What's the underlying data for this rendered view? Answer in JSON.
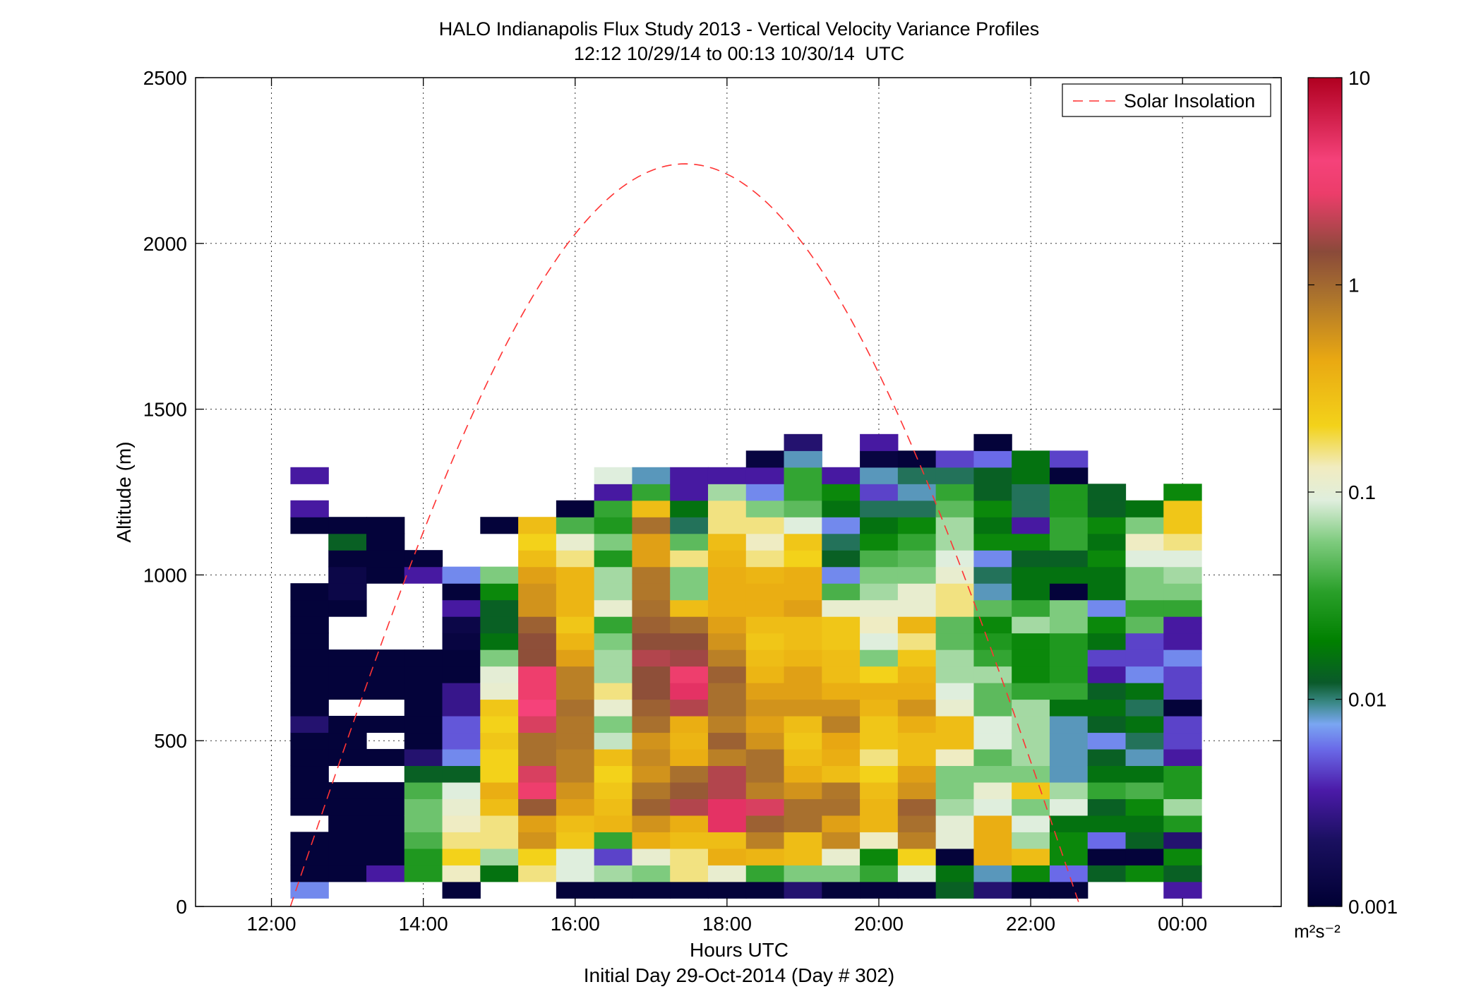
{
  "chart_data": {
    "type": "heatmap",
    "title": "HALO Indianapolis Flux Study 2013 - Vertical Velocity Variance Profiles",
    "subtitle": "12:12 10/29/14 to 00:13 10/30/14  UTC",
    "xlabel": "Hours UTC",
    "xlabel2": "Initial Day 29-Oct-2014 (Day # 302)",
    "ylabel": "Altitude (m)",
    "x_start_hour": 11.0,
    "x_end_hour": 25.3,
    "xlim_labels": [
      "12:00",
      "14:00",
      "16:00",
      "18:00",
      "20:00",
      "22:00",
      "00:00"
    ],
    "xticks_hour": [
      12,
      14,
      16,
      18,
      20,
      22,
      24
    ],
    "ylim": [
      0,
      2500
    ],
    "yticks": [
      0,
      500,
      1000,
      1500,
      2000,
      2500
    ],
    "grid": true,
    "colorbar": {
      "scale": "log",
      "min": 0.001,
      "max": 10,
      "tick_labels": [
        "0.001",
        "0.01",
        "0.1",
        "1",
        "10"
      ],
      "unit": "m2s-2",
      "unit_display": "m²s⁻²"
    },
    "legend": {
      "position": "top-right",
      "entries": [
        {
          "label": "Solar Insolation",
          "color": "#ff3333",
          "style": "dashed"
        }
      ]
    },
    "solar_insolation": {
      "start_hour": 12.25,
      "peak_hour": 17.45,
      "end_hour": 22.65,
      "peak_altitude": 2240
    },
    "cell_height_m": 50,
    "row_altitudes_bottom_m": [
      50,
      100,
      150,
      200,
      250,
      300,
      350,
      400,
      450,
      500,
      550,
      600,
      650,
      700,
      750,
      800,
      850,
      900,
      950,
      1000,
      1050,
      1100,
      1150,
      1200,
      1250,
      1300,
      1350,
      1400
    ],
    "columns": [
      {
        "hour": 12.5,
        "values": [
          0.006,
          0.0011,
          0.0011,
          0.0011,
          null,
          0.0011,
          0.0011,
          0.0011,
          0.0011,
          0.0011,
          0.002,
          0.0011,
          0.0011,
          0.0011,
          0.0011,
          0.0011,
          0.0011,
          0.0011,
          0.0011,
          null,
          null,
          null,
          0.0011,
          0.003,
          null,
          0.003,
          null,
          null
        ]
      },
      {
        "hour": 13.0,
        "values": [
          null,
          0.0011,
          0.0011,
          0.0011,
          0.0011,
          0.0011,
          0.0011,
          null,
          0.0011,
          0.0011,
          0.0011,
          null,
          0.0011,
          0.0011,
          0.0011,
          null,
          null,
          0.0011,
          0.0013,
          0.0013,
          0.0011,
          0.012,
          0.0011,
          null,
          null,
          null,
          null,
          null
        ]
      },
      {
        "hour": 13.5,
        "values": [
          null,
          0.003,
          0.0011,
          0.0011,
          0.0011,
          0.0011,
          0.0011,
          null,
          0.0011,
          null,
          0.0011,
          null,
          0.0011,
          0.0011,
          0.0011,
          null,
          null,
          null,
          null,
          0.0011,
          0.0011,
          0.0011,
          0.0011,
          null,
          null,
          null,
          null,
          null
        ]
      },
      {
        "hour": 14.0,
        "values": [
          null,
          0.025,
          0.025,
          0.035,
          0.045,
          0.045,
          0.035,
          0.012,
          0.002,
          0.0011,
          0.0011,
          0.0011,
          0.0011,
          0.0011,
          0.0011,
          null,
          null,
          null,
          null,
          0.003,
          0.0011,
          null,
          null,
          null,
          null,
          null,
          null,
          null
        ]
      },
      {
        "hour": 14.5,
        "values": [
          0.0011,
          0.12,
          0.2,
          0.15,
          0.12,
          0.1,
          0.08,
          0.012,
          0.006,
          0.0045,
          0.0045,
          0.0025,
          0.0025,
          0.0011,
          0.0011,
          0.0012,
          0.0013,
          0.003,
          0.0011,
          0.006,
          null,
          null,
          null,
          null,
          null,
          null,
          null,
          null
        ]
      },
      {
        "hour": 15.0,
        "values": [
          null,
          0.015,
          0.06,
          0.15,
          0.15,
          0.3,
          0.4,
          0.2,
          0.2,
          0.25,
          0.2,
          0.25,
          0.1,
          0.09,
          0.05,
          0.015,
          0.012,
          0.012,
          0.02,
          0.05,
          null,
          null,
          0.0011,
          null,
          null,
          null,
          null,
          null
        ]
      },
      {
        "hour": 15.5,
        "values": [
          null,
          0.15,
          0.2,
          0.6,
          0.5,
          1.3,
          3.0,
          2.5,
          1.0,
          1.0,
          2.5,
          4.0,
          3.0,
          3.0,
          1.5,
          1.5,
          1.2,
          0.6,
          0.6,
          0.5,
          0.3,
          0.2,
          0.3,
          null,
          null,
          null,
          null,
          null
        ]
      },
      {
        "hour": 16.0,
        "values": [
          0.0011,
          0.08,
          0.08,
          0.25,
          0.3,
          0.5,
          0.6,
          0.8,
          0.8,
          0.9,
          0.9,
          1.0,
          0.8,
          0.8,
          0.5,
          0.35,
          0.25,
          0.35,
          0.35,
          0.35,
          0.15,
          0.1,
          0.035,
          0.0011,
          null,
          null,
          null,
          null
        ]
      },
      {
        "hour": 16.5,
        "values": [
          0.0011,
          0.06,
          0.004,
          0.03,
          0.35,
          0.3,
          0.25,
          0.2,
          0.3,
          0.07,
          0.05,
          0.1,
          0.15,
          0.06,
          0.06,
          0.05,
          0.03,
          0.1,
          0.06,
          0.06,
          0.025,
          0.05,
          0.025,
          0.03,
          0.003,
          0.08,
          null,
          null
        ]
      },
      {
        "hour": 17.0,
        "values": [
          0.0011,
          0.05,
          0.1,
          0.4,
          0.6,
          1.2,
          0.9,
          0.6,
          0.7,
          0.6,
          1.0,
          1.2,
          1.5,
          1.5,
          2.0,
          1.5,
          1.2,
          1.0,
          0.9,
          0.9,
          0.5,
          0.5,
          1.0,
          0.3,
          0.03,
          0.008,
          null,
          null
        ]
      },
      {
        "hour": 17.5,
        "values": [
          0.0011,
          0.15,
          0.15,
          0.3,
          0.4,
          2.0,
          1.3,
          1.0,
          0.4,
          0.35,
          0.4,
          2.0,
          5.0,
          3.0,
          1.8,
          1.5,
          1.0,
          0.3,
          0.05,
          0.05,
          0.15,
          0.04,
          0.01,
          0.015,
          0.003,
          0.003,
          null,
          null
        ]
      },
      {
        "hour": 18.0,
        "values": [
          0.0011,
          0.1,
          0.4,
          0.3,
          5.0,
          5.0,
          2.0,
          2.0,
          0.8,
          1.2,
          0.8,
          1.0,
          1.0,
          1.2,
          0.8,
          0.6,
          0.5,
          0.4,
          0.4,
          0.4,
          0.35,
          0.3,
          0.15,
          0.15,
          0.06,
          0.003,
          null,
          null
        ]
      },
      {
        "hour": 18.5,
        "values": [
          0.0011,
          0.03,
          0.35,
          0.8,
          1.2,
          2.5,
          0.8,
          1.0,
          1.0,
          0.6,
          0.5,
          0.6,
          0.5,
          0.35,
          0.3,
          0.25,
          0.3,
          0.4,
          0.4,
          0.35,
          0.15,
          0.12,
          0.15,
          0.05,
          0.006,
          0.003,
          0.0012,
          null
        ]
      },
      {
        "hour": 19.0,
        "values": [
          0.002,
          0.05,
          0.3,
          0.3,
          1.0,
          1.0,
          0.6,
          0.4,
          0.3,
          0.25,
          0.3,
          0.6,
          0.5,
          0.5,
          0.35,
          0.3,
          0.3,
          0.5,
          0.4,
          0.4,
          0.2,
          0.25,
          0.08,
          0.04,
          0.03,
          0.03,
          0.008,
          0.002
        ]
      },
      {
        "hour": 19.5,
        "values": [
          0.0011,
          0.05,
          0.1,
          0.7,
          0.5,
          1.0,
          0.9,
          0.3,
          0.4,
          0.45,
          0.8,
          0.6,
          0.4,
          0.3,
          0.3,
          0.25,
          0.25,
          0.1,
          0.035,
          0.006,
          0.012,
          0.01,
          0.006,
          0.015,
          0.02,
          0.003,
          null,
          null
        ]
      },
      {
        "hour": 20.0,
        "values": [
          0.0011,
          0.03,
          0.02,
          0.12,
          0.35,
          0.35,
          0.3,
          0.2,
          0.15,
          0.25,
          0.25,
          0.35,
          0.4,
          0.2,
          0.05,
          0.08,
          0.12,
          0.1,
          0.06,
          0.05,
          0.035,
          0.02,
          0.015,
          0.01,
          0.004,
          0.008,
          0.0012,
          0.003
        ]
      },
      {
        "hour": 20.5,
        "values": [
          0.0011,
          0.08,
          0.2,
          0.8,
          1.0,
          1.2,
          0.6,
          0.5,
          0.3,
          0.3,
          0.4,
          0.6,
          0.4,
          0.35,
          0.25,
          0.15,
          0.35,
          0.1,
          0.1,
          0.05,
          0.04,
          0.03,
          0.02,
          0.01,
          0.008,
          0.01,
          0.0011,
          null
        ]
      },
      {
        "hour": 21.0,
        "values": [
          0.012,
          0.015,
          0.0011,
          0.09,
          0.09,
          0.06,
          0.05,
          0.05,
          0.12,
          0.3,
          0.3,
          0.1,
          0.08,
          0.06,
          0.06,
          0.04,
          0.04,
          0.15,
          0.15,
          0.1,
          0.08,
          0.06,
          0.06,
          0.04,
          0.03,
          0.01,
          0.004,
          null
        ]
      },
      {
        "hour": 21.5,
        "values": [
          0.002,
          0.008,
          0.4,
          0.4,
          0.4,
          0.08,
          0.1,
          0.05,
          0.04,
          0.08,
          0.08,
          0.04,
          0.04,
          0.06,
          0.03,
          0.025,
          0.02,
          0.04,
          0.008,
          0.01,
          0.006,
          0.02,
          0.015,
          0.02,
          0.012,
          0.012,
          0.005,
          0.0011
        ]
      },
      {
        "hour": 22.0,
        "values": [
          0.0011,
          0.02,
          0.3,
          0.06,
          0.08,
          0.05,
          0.25,
          0.05,
          0.06,
          0.06,
          0.06,
          0.06,
          0.03,
          0.02,
          0.02,
          0.02,
          0.06,
          0.03,
          0.015,
          0.015,
          0.012,
          0.02,
          0.003,
          0.01,
          0.01,
          0.015,
          0.015,
          null
        ]
      },
      {
        "hour": 22.5,
        "values": [
          0.0011,
          0.005,
          0.02,
          0.02,
          0.015,
          0.08,
          0.06,
          0.008,
          0.008,
          0.008,
          0.008,
          0.015,
          0.03,
          0.025,
          0.025,
          0.025,
          0.05,
          0.05,
          0.0011,
          0.015,
          0.012,
          0.03,
          0.03,
          0.025,
          0.025,
          0.0011,
          0.004,
          null
        ]
      },
      {
        "hour": 23.0,
        "values": [
          null,
          0.012,
          0.0011,
          0.005,
          0.015,
          0.012,
          0.03,
          0.015,
          0.012,
          0.006,
          0.012,
          0.015,
          0.012,
          0.003,
          0.004,
          0.015,
          0.02,
          0.006,
          0.015,
          0.015,
          0.02,
          0.015,
          0.02,
          0.012,
          0.012,
          null,
          null,
          null
        ]
      },
      {
        "hour": 23.5,
        "values": [
          null,
          0.02,
          0.0011,
          0.012,
          0.015,
          0.02,
          0.035,
          0.015,
          0.008,
          0.01,
          0.015,
          0.01,
          0.015,
          0.006,
          0.004,
          0.004,
          0.04,
          0.03,
          0.05,
          0.05,
          0.08,
          0.12,
          0.05,
          0.015,
          null,
          null,
          null,
          null
        ]
      },
      {
        "hour": 24.0,
        "values": [
          0.003,
          0.012,
          0.02,
          0.002,
          0.025,
          0.06,
          0.025,
          0.025,
          0.003,
          0.004,
          0.004,
          0.0011,
          0.004,
          0.004,
          0.006,
          0.003,
          0.003,
          0.03,
          0.05,
          0.06,
          0.08,
          0.15,
          0.25,
          0.25,
          0.02,
          null,
          null,
          null
        ]
      }
    ]
  }
}
